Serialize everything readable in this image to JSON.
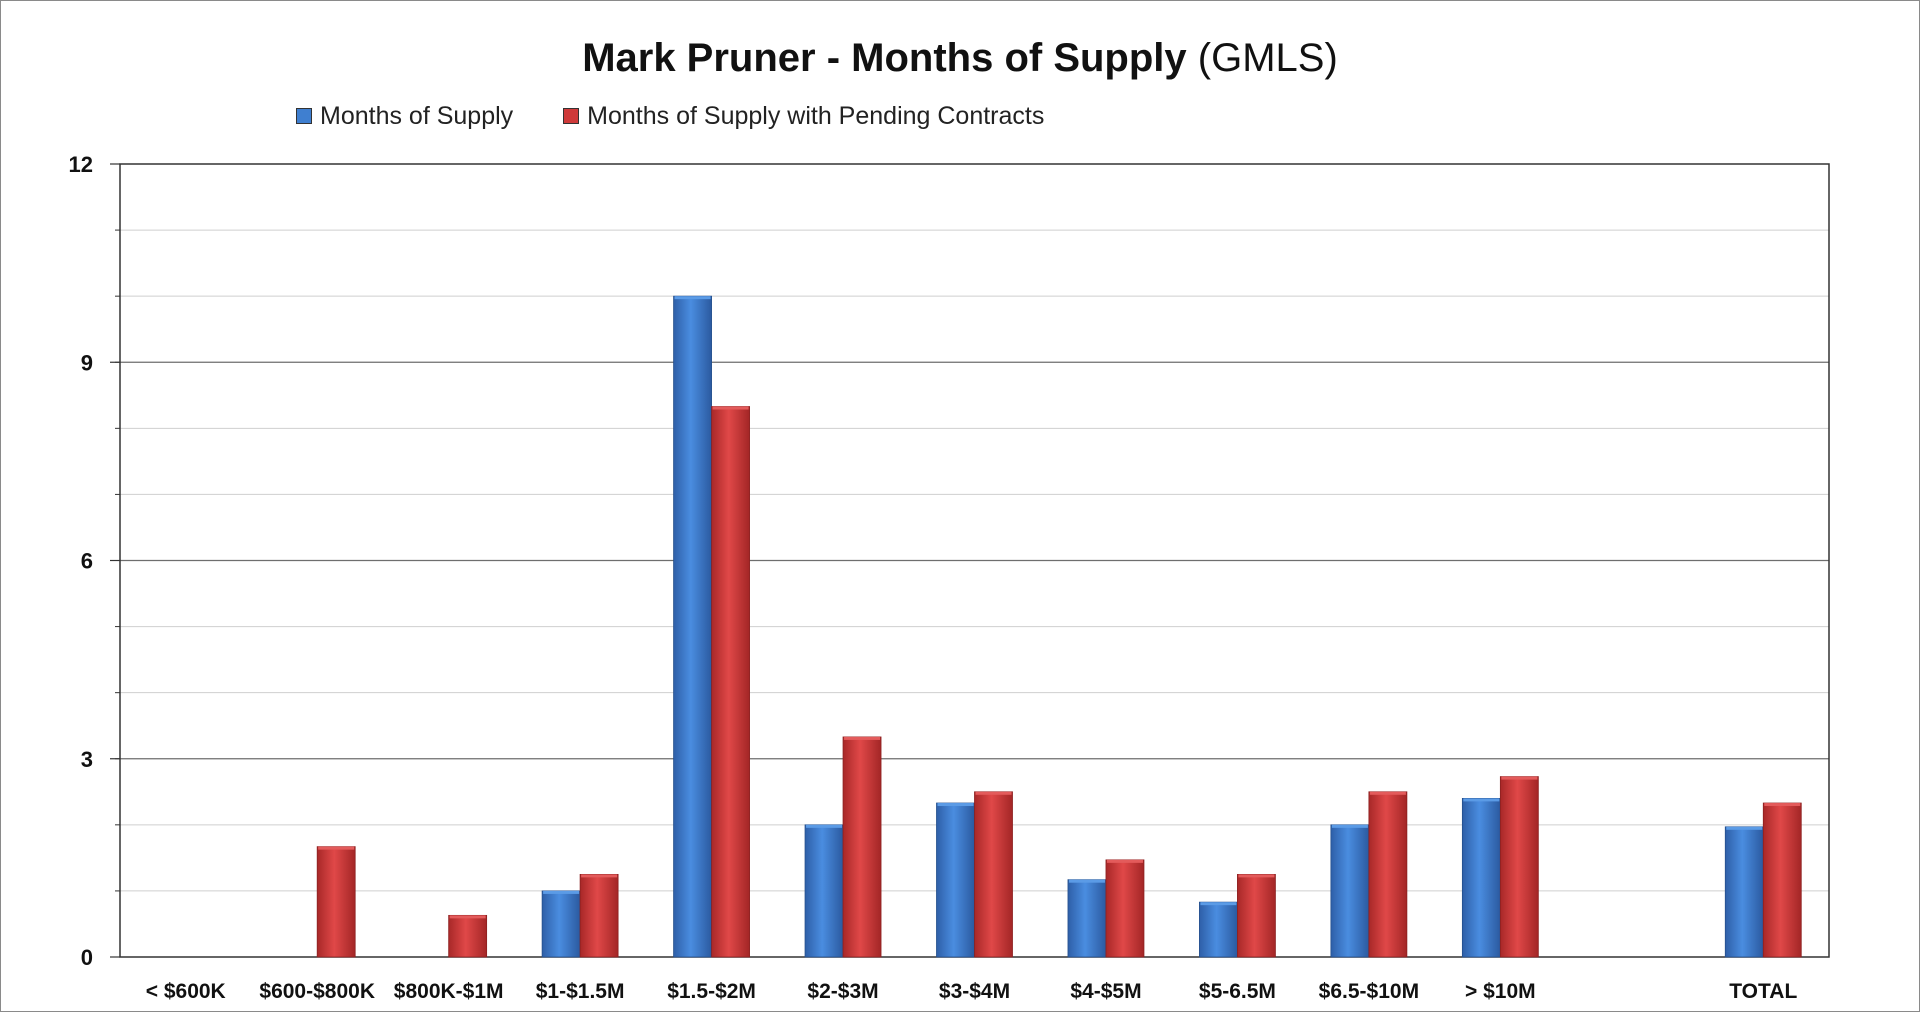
{
  "title": {
    "main": "Mark Pruner - Months of Supply",
    "suffix": "(GMLS)"
  },
  "chart_data": {
    "type": "bar",
    "categories": [
      "< $600K",
      "$600-$800K",
      "$800K-$1M",
      "$1-$1.5M",
      "$1.5-$2M",
      "$2-$3M",
      "$3-$4M",
      "$4-$5M",
      "$5-6.5M",
      "$6.5-$10M",
      "> $10M",
      "",
      "TOTAL"
    ],
    "series": [
      {
        "name": "Months of Supply",
        "color": "#3f7fd0",
        "values": [
          0,
          0,
          0,
          1.0,
          10.0,
          2.0,
          2.33,
          1.17,
          0.83,
          2.0,
          2.4,
          null,
          1.97
        ]
      },
      {
        "name": "Months of Supply with Pending Contracts",
        "color": "#cf3a3a",
        "values": [
          0,
          1.67,
          0.63,
          1.25,
          8.33,
          3.33,
          2.5,
          1.47,
          1.25,
          2.5,
          2.73,
          null,
          2.33
        ]
      }
    ],
    "ylim": [
      0,
      12
    ],
    "yticks": [
      0,
      3,
      6,
      9,
      12
    ],
    "grid": true,
    "legend_position": "top-left"
  }
}
